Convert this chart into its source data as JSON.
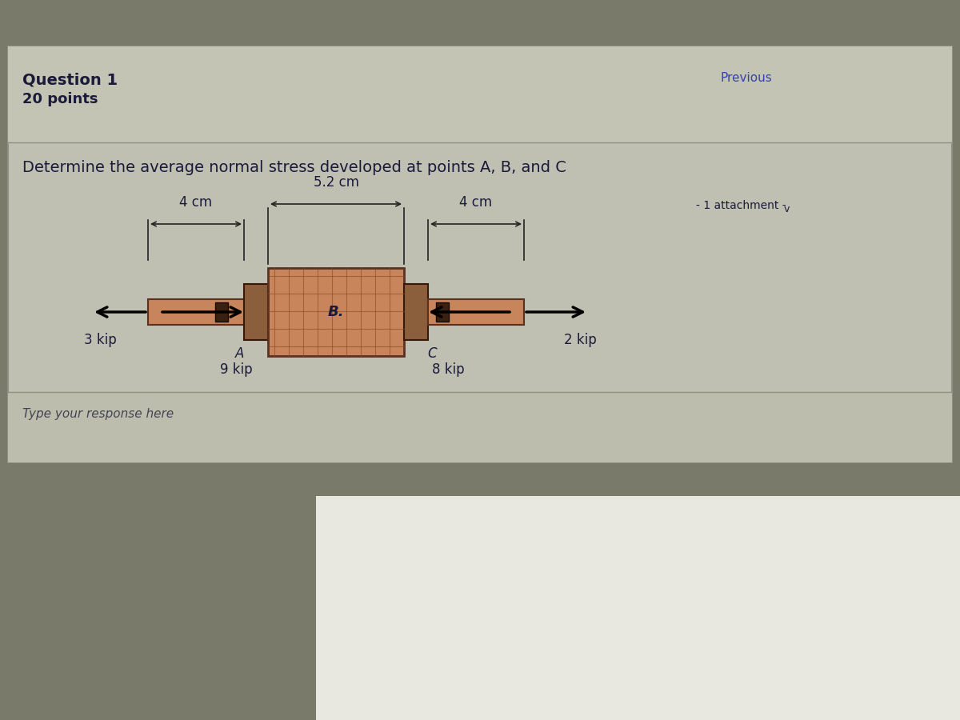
{
  "bg_color_outer": "#7a7a6a",
  "bg_color_main": "#a8a898",
  "panel_top_color": "#b0b0a0",
  "panel_mid_color": "#a8a898",
  "panel_bot_color": "#c8c8b8",
  "question_title": "Question 1",
  "question_points": "20 points",
  "question_text": "Determine the average normal stress developed at points A, B, and C",
  "attachment_text": "- 1 attachment -",
  "previous_text": "Previous",
  "type_response_text": "Type your response here",
  "dim_52cm": "5.2 cm",
  "dim_4cm_left": "4 cm",
  "dim_4cm_right": "4 cm",
  "label_A": "A",
  "label_B": "B.",
  "label_C": "C",
  "force_3kip": "3 kip",
  "force_9kip": "9 kip",
  "force_8kip": "8 kip",
  "force_2kip": "2 kip",
  "bar_color_main": "#c8845a",
  "bar_color_dark": "#8b5e3c",
  "text_color": "#1a1a3a",
  "text_color_light": "#444455"
}
